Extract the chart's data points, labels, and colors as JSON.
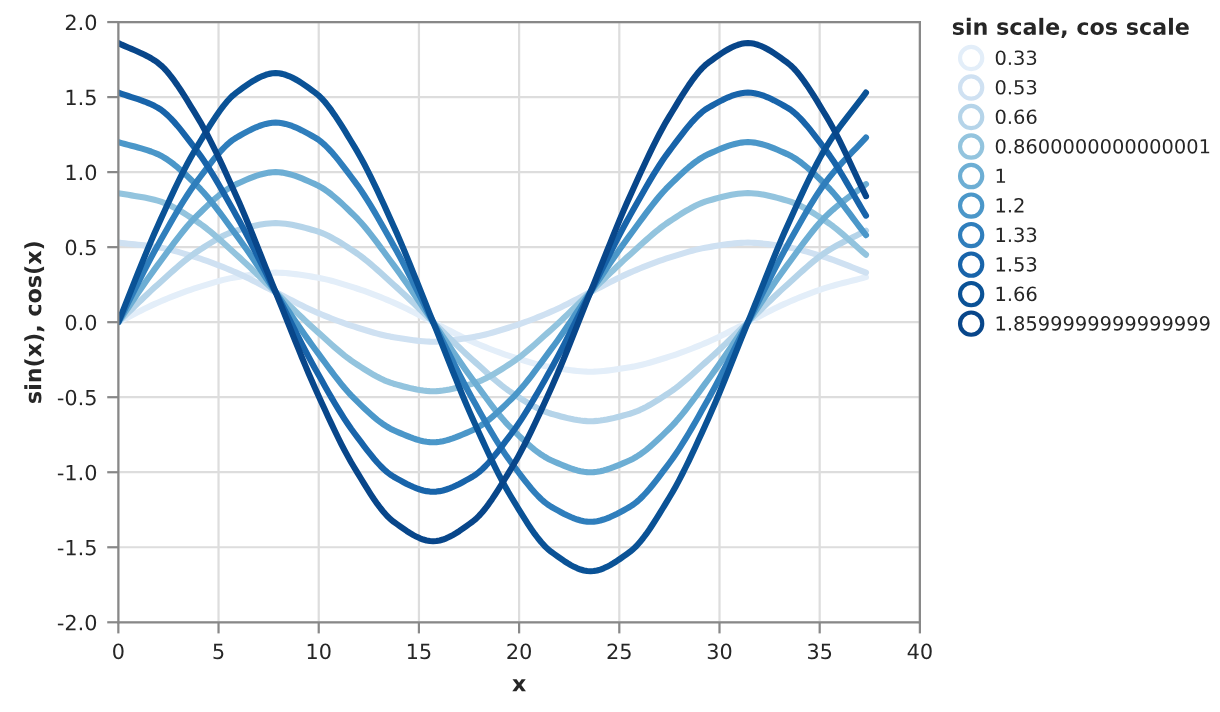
{
  "chart_data": {
    "type": "line",
    "xlabel": "x",
    "ylabel": "sin(x), cos(x)",
    "legend_title": "sin scale, cos scale",
    "legend": "right",
    "grid": true,
    "line_style": "solid",
    "x": [
      0,
      1.96,
      3.93,
      5.89,
      7.85,
      9.82,
      11.78,
      13.74,
      15.71,
      17.67,
      19.63,
      21.6,
      23.56,
      25.53,
      27.49,
      29.45,
      31.42,
      33.38,
      35.34,
      37.31
    ],
    "xlim": [
      0,
      40
    ],
    "xticks": [
      0,
      5,
      10,
      15,
      20,
      25,
      30,
      35,
      40
    ],
    "ylim": [
      -2,
      2
    ],
    "yticks": [
      {
        "value": -2,
        "label": "-2.0"
      },
      {
        "value": -1.5,
        "label": "-1.5"
      },
      {
        "value": -1,
        "label": "-1.0"
      },
      {
        "value": -0.5,
        "label": "-0.5"
      },
      {
        "value": 0,
        "label": "0.0"
      },
      {
        "value": 0.5,
        "label": "0.5"
      },
      {
        "value": 1,
        "label": "1.0"
      },
      {
        "value": 1.5,
        "label": "1.5"
      },
      {
        "value": 2,
        "label": "2.0"
      }
    ],
    "series": [
      {
        "name": "0.33",
        "color": "#e3eef9",
        "values": [
          0,
          0.13,
          0.23,
          0.3,
          0.33,
          0.3,
          0.23,
          0.13,
          0,
          -0.13,
          -0.23,
          -0.3,
          -0.33,
          -0.3,
          -0.23,
          -0.13,
          0,
          0.13,
          0.23,
          0.3
        ]
      },
      {
        "name": "0.53",
        "color": "#cfe1f2",
        "values": [
          0.53,
          0.5,
          0.43,
          0.33,
          0.2,
          0.07,
          -0.03,
          -0.1,
          -0.13,
          -0.1,
          -0.03,
          0.07,
          0.2,
          0.33,
          0.43,
          0.5,
          0.53,
          0.5,
          0.43,
          0.33
        ]
      },
      {
        "name": "0.66",
        "color": "#b5d4e9",
        "values": [
          0,
          0.25,
          0.47,
          0.61,
          0.66,
          0.61,
          0.47,
          0.25,
          0,
          -0.25,
          -0.47,
          -0.61,
          -0.66,
          -0.61,
          -0.47,
          -0.25,
          0,
          0.25,
          0.47,
          0.61
        ]
      },
      {
        "name": "0.8600000000000001",
        "color": "#93c4de",
        "values": [
          0.86,
          0.81,
          0.67,
          0.45,
          0.2,
          -0.05,
          -0.27,
          -0.41,
          -0.46,
          -0.41,
          -0.27,
          -0.05,
          0.2,
          0.45,
          0.67,
          0.81,
          0.86,
          0.81,
          0.67,
          0.45
        ]
      },
      {
        "name": "1",
        "color": "#6daed4",
        "values": [
          0,
          0.38,
          0.71,
          0.92,
          1,
          0.92,
          0.71,
          0.38,
          0,
          -0.38,
          -0.71,
          -0.92,
          -1,
          -0.92,
          -0.71,
          -0.38,
          0,
          0.38,
          0.71,
          0.92
        ]
      },
      {
        "name": "1.2",
        "color": "#4b97c9",
        "values": [
          1.2,
          1.12,
          0.91,
          0.58,
          0.2,
          -0.18,
          -0.51,
          -0.72,
          -0.8,
          -0.72,
          -0.51,
          -0.18,
          0.2,
          0.58,
          0.91,
          1.12,
          1.2,
          1.12,
          0.91,
          0.58
        ]
      },
      {
        "name": "1.33",
        "color": "#2f7ebc",
        "values": [
          0,
          0.51,
          0.94,
          1.23,
          1.33,
          1.23,
          0.94,
          0.51,
          0,
          -0.51,
          -0.94,
          -1.23,
          -1.33,
          -1.23,
          -0.94,
          -0.51,
          0,
          0.51,
          0.94,
          1.23
        ]
      },
      {
        "name": "1.53",
        "color": "#1864aa",
        "values": [
          1.53,
          1.43,
          1.14,
          0.71,
          0.2,
          -0.31,
          -0.74,
          -1.03,
          -1.13,
          -1.03,
          -0.74,
          -0.31,
          0.2,
          0.71,
          1.14,
          1.43,
          1.53,
          1.43,
          1.14,
          0.71
        ]
      },
      {
        "name": "1.66",
        "color": "#0a5296",
        "values": [
          0,
          0.64,
          1.17,
          1.53,
          1.66,
          1.53,
          1.17,
          0.64,
          0,
          -0.64,
          -1.17,
          -1.53,
          -1.66,
          -1.53,
          -1.17,
          -0.64,
          0,
          0.64,
          1.17,
          1.53
        ]
      },
      {
        "name": "1.8599999999999999",
        "color": "#08468a",
        "values": [
          1.86,
          1.73,
          1.37,
          0.84,
          0.2,
          -0.44,
          -0.97,
          -1.33,
          -1.46,
          -1.33,
          -0.97,
          -0.44,
          0.2,
          0.84,
          1.37,
          1.73,
          1.86,
          1.73,
          1.37,
          0.84
        ]
      }
    ]
  }
}
